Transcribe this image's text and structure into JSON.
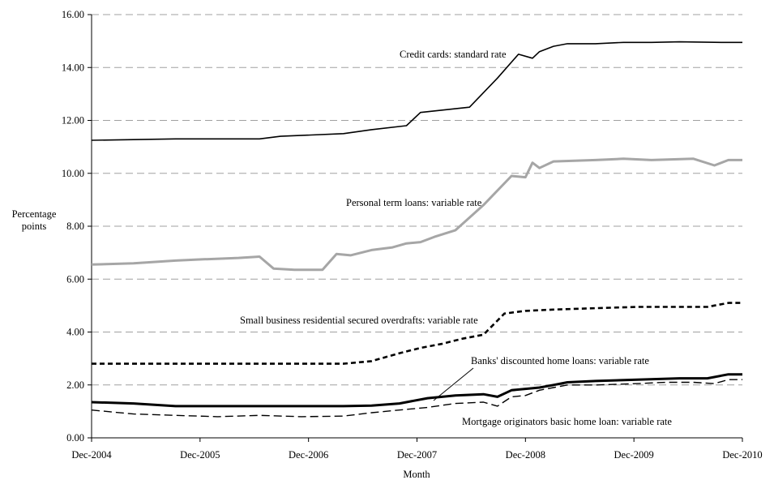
{
  "chart_data": {
    "type": "line",
    "xlabel": "Month",
    "ylabel": "Percentage points",
    "ylim": [
      0,
      16
    ],
    "yticks": [
      "0.00",
      "2.00",
      "4.00",
      "6.00",
      "8.00",
      "10.00",
      "12.00",
      "14.00",
      "16.00"
    ],
    "xticks": [
      "Dec-2004",
      "Dec-2005",
      "Dec-2006",
      "Dec-2007",
      "Dec-2008",
      "Dec-2009",
      "Dec-2010"
    ],
    "x_range": [
      "Dec-2004",
      "Dec-2010"
    ],
    "grid": "horizontal dashed",
    "series": [
      {
        "name": "Credit cards: standard rate",
        "style": "solid-thin",
        "color": "#000000",
        "points": [
          [
            0,
            11.25
          ],
          [
            12,
            11.3
          ],
          [
            24,
            11.3
          ],
          [
            27,
            11.4
          ],
          [
            36,
            11.5
          ],
          [
            40,
            11.65
          ],
          [
            45,
            11.8
          ],
          [
            47,
            12.3
          ],
          [
            54,
            12.5
          ],
          [
            58,
            13.6
          ],
          [
            61,
            14.5
          ],
          [
            63,
            14.35
          ],
          [
            64,
            14.6
          ],
          [
            66,
            14.8
          ],
          [
            68,
            14.9
          ],
          [
            72,
            14.9
          ],
          [
            76,
            14.95
          ],
          [
            80,
            14.95
          ],
          [
            84,
            14.97
          ],
          [
            90,
            14.95
          ],
          [
            93,
            14.95
          ]
        ]
      },
      {
        "name": "Personal term loans: variable rate",
        "style": "solid-thick",
        "color": "#a6a6a6",
        "points": [
          [
            0,
            6.55
          ],
          [
            6,
            6.6
          ],
          [
            12,
            6.7
          ],
          [
            16,
            6.75
          ],
          [
            21,
            6.8
          ],
          [
            24,
            6.85
          ],
          [
            26,
            6.4
          ],
          [
            29,
            6.35
          ],
          [
            33,
            6.35
          ],
          [
            35,
            6.95
          ],
          [
            37,
            6.9
          ],
          [
            40,
            7.1
          ],
          [
            43,
            7.2
          ],
          [
            45,
            7.35
          ],
          [
            47,
            7.4
          ],
          [
            49,
            7.6
          ],
          [
            52,
            7.85
          ],
          [
            56,
            8.8
          ],
          [
            60,
            9.9
          ],
          [
            62,
            9.85
          ],
          [
            63,
            10.4
          ],
          [
            64,
            10.2
          ],
          [
            66,
            10.45
          ],
          [
            72,
            10.5
          ],
          [
            76,
            10.55
          ],
          [
            80,
            10.5
          ],
          [
            86,
            10.55
          ],
          [
            89,
            10.3
          ],
          [
            91,
            10.5
          ],
          [
            93,
            10.5
          ]
        ]
      },
      {
        "name": "Small business residential secured overdrafts: variable rate",
        "style": "dashed-thick",
        "color": "#000000",
        "points": [
          [
            0,
            2.8
          ],
          [
            12,
            2.8
          ],
          [
            18,
            2.8
          ],
          [
            24,
            2.8
          ],
          [
            30,
            2.8
          ],
          [
            36,
            2.8
          ],
          [
            40,
            2.9
          ],
          [
            44,
            3.2
          ],
          [
            47,
            3.4
          ],
          [
            50,
            3.55
          ],
          [
            53,
            3.75
          ],
          [
            56,
            3.9
          ],
          [
            59,
            4.7
          ],
          [
            62,
            4.8
          ],
          [
            66,
            4.85
          ],
          [
            72,
            4.9
          ],
          [
            78,
            4.95
          ],
          [
            84,
            4.95
          ],
          [
            88,
            4.95
          ],
          [
            91,
            5.1
          ],
          [
            93,
            5.1
          ]
        ]
      },
      {
        "name": "Banks' discounted home loans: variable rate",
        "style": "solid-thick",
        "color": "#000000",
        "points": [
          [
            0,
            1.35
          ],
          [
            6,
            1.3
          ],
          [
            12,
            1.2
          ],
          [
            24,
            1.2
          ],
          [
            36,
            1.2
          ],
          [
            40,
            1.22
          ],
          [
            44,
            1.3
          ],
          [
            48,
            1.5
          ],
          [
            52,
            1.6
          ],
          [
            56,
            1.65
          ],
          [
            58,
            1.55
          ],
          [
            60,
            1.8
          ],
          [
            62,
            1.85
          ],
          [
            64,
            1.9
          ],
          [
            66,
            2.0
          ],
          [
            68,
            2.1
          ],
          [
            72,
            2.15
          ],
          [
            78,
            2.2
          ],
          [
            84,
            2.25
          ],
          [
            88,
            2.25
          ],
          [
            91,
            2.4
          ],
          [
            93,
            2.4
          ]
        ]
      },
      {
        "name": "Mortgage originators basic home loan: variable rate",
        "style": "dashed-thin",
        "color": "#000000",
        "points": [
          [
            0,
            1.05
          ],
          [
            6,
            0.9
          ],
          [
            12,
            0.85
          ],
          [
            18,
            0.8
          ],
          [
            24,
            0.85
          ],
          [
            30,
            0.8
          ],
          [
            36,
            0.82
          ],
          [
            40,
            0.95
          ],
          [
            44,
            1.05
          ],
          [
            48,
            1.15
          ],
          [
            52,
            1.3
          ],
          [
            56,
            1.35
          ],
          [
            58,
            1.2
          ],
          [
            60,
            1.55
          ],
          [
            62,
            1.6
          ],
          [
            64,
            1.8
          ],
          [
            66,
            1.9
          ],
          [
            68,
            2.0
          ],
          [
            72,
            2.0
          ],
          [
            78,
            2.05
          ],
          [
            82,
            2.1
          ],
          [
            86,
            2.1
          ],
          [
            89,
            2.05
          ],
          [
            91,
            2.2
          ],
          [
            93,
            2.2
          ]
        ]
      }
    ]
  }
}
